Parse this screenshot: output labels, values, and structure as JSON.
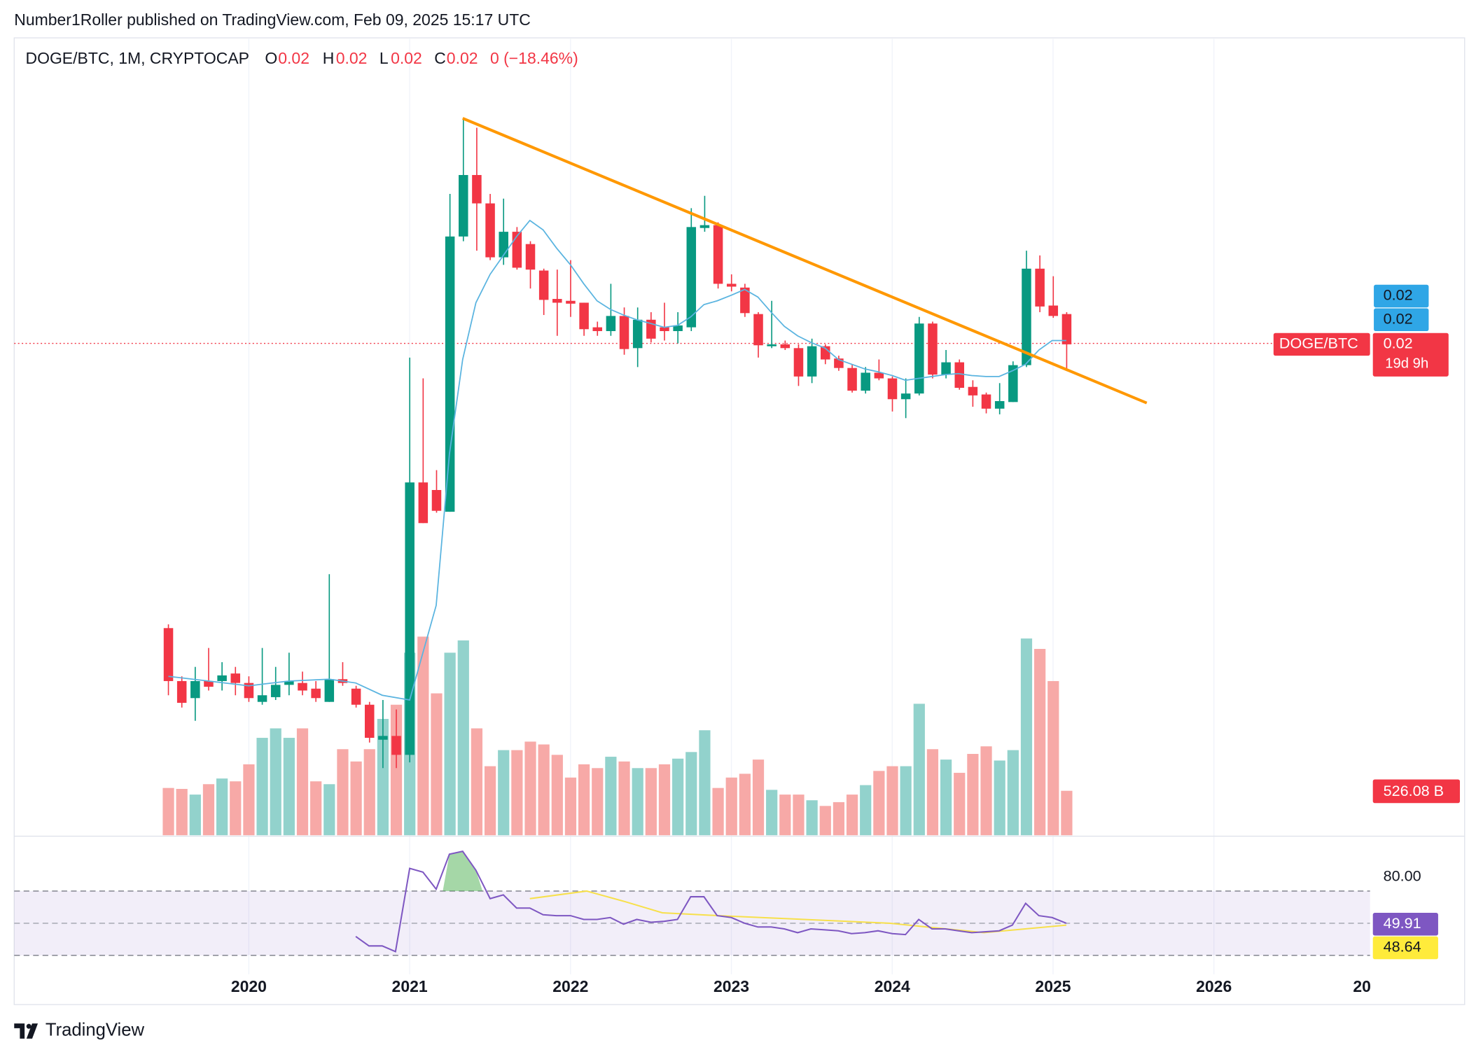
{
  "header": {
    "published": "Number1Roller published on TradingView.com, Feb 09, 2025 15:17 UTC"
  },
  "legend": {
    "symbol": "DOGE/BTC, 1M, CRYPTOCAP",
    "open_key": "O",
    "open": "0.02",
    "high_key": "H",
    "high": "0.02",
    "low_key": "L",
    "low": "0.02",
    "close_key": "C",
    "close": "0.02",
    "change": "0 (−18.46%)"
  },
  "price_axis": {
    "label_1": "0.02",
    "label_2": "0.02",
    "symbol_tag": "DOGE/BTC",
    "last_price": "0.02",
    "countdown": "19d 9h"
  },
  "volume_axis": {
    "label": "526.08 B"
  },
  "rsi_axis": {
    "upper": "80.00",
    "rsi": "49.91",
    "rsi_ma": "48.64"
  },
  "time_axis": {
    "labels": [
      "2020",
      "2021",
      "2022",
      "2023",
      "2024",
      "2025",
      "2026",
      "20"
    ]
  },
  "footer": {
    "brand": "TradingView"
  }
}
